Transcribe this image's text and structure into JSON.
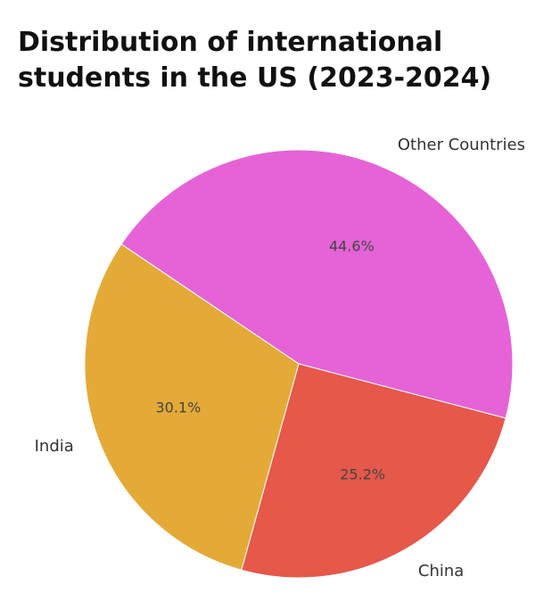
{
  "chart_data": {
    "type": "pie",
    "title_lines": [
      "Distribution of international",
      "students in the US (2023-2024)"
    ],
    "labels": [
      "Other Countries",
      "China",
      "India"
    ],
    "values": [
      44.6,
      25.2,
      30.1
    ],
    "value_labels": [
      "44.6%",
      "25.2%",
      "30.1%"
    ],
    "colors": [
      "#e563d6",
      "#e5584a",
      "#e3aa37"
    ],
    "legend": "none"
  }
}
